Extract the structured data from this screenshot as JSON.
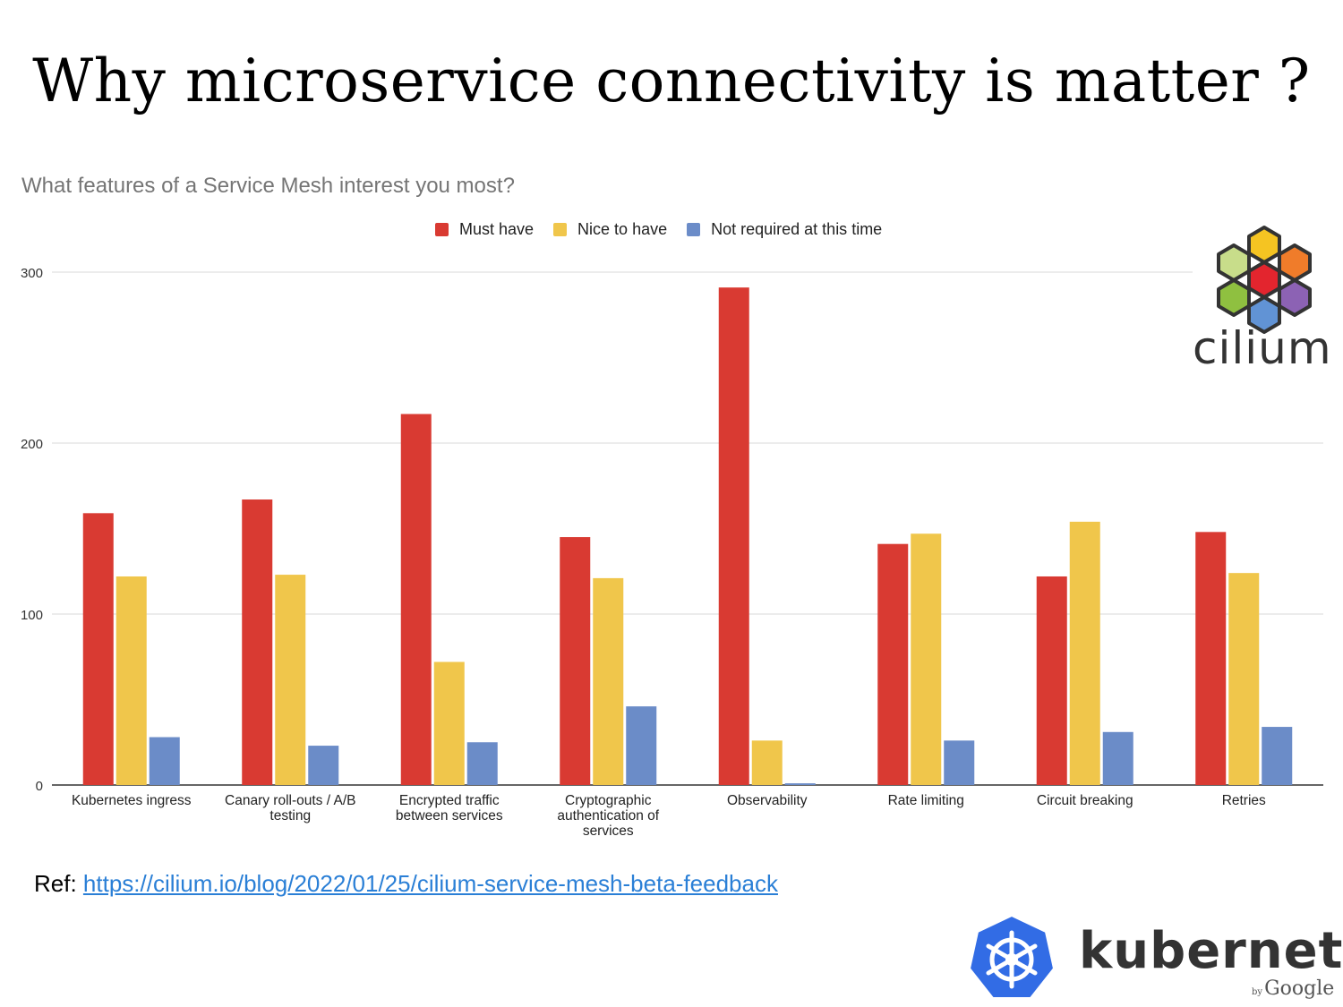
{
  "slide": {
    "title": "Why microservice connectivity is matter ?",
    "ref_label": "Ref:",
    "ref_link": "https://cilium.io/blog/2022/01/25/cilium-service-mesh-beta-feedback",
    "cilium_logo_text": "cilium",
    "kubernetes_logo_text": "kubernetes",
    "kubernetes_by": "by",
    "kubernetes_google": "Google"
  },
  "colors": {
    "must_have": "#d93a32",
    "nice_to_have": "#f0c64b",
    "not_required": "#6b8cc8"
  },
  "chart_data": {
    "type": "bar",
    "title": "What features of a Service Mesh interest you most?",
    "xlabel": "",
    "ylabel": "",
    "ylim": [
      0,
      300
    ],
    "yticks": [
      0,
      100,
      200,
      300
    ],
    "grid": true,
    "legend_position": "top",
    "categories": [
      [
        "Kubernetes ingress"
      ],
      [
        "Canary roll-outs / A/B",
        "testing"
      ],
      [
        "Encrypted traffic",
        "between services"
      ],
      [
        "Cryptographic",
        "authentication of",
        "services"
      ],
      [
        "Observability"
      ],
      [
        "Rate limiting"
      ],
      [
        "Circuit breaking"
      ],
      [
        "Retries"
      ]
    ],
    "series": [
      {
        "name": "Must have",
        "color": "#d93a32",
        "values": [
          159,
          167,
          217,
          145,
          291,
          141,
          122,
          148
        ]
      },
      {
        "name": "Nice to have",
        "color": "#f0c64b",
        "values": [
          122,
          123,
          72,
          121,
          26,
          147,
          154,
          124
        ]
      },
      {
        "name": "Not required at this time",
        "color": "#6b8cc8",
        "values": [
          28,
          23,
          25,
          46,
          1,
          26,
          31,
          34
        ]
      }
    ]
  }
}
